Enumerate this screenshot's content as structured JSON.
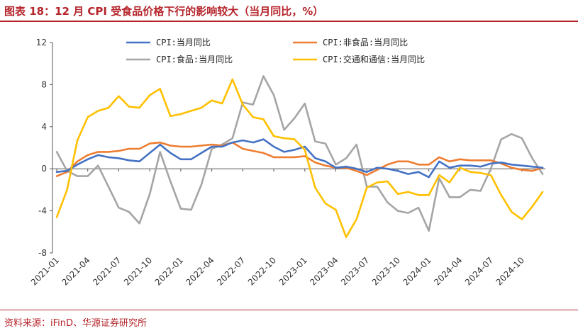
{
  "title": "图表 18：12 月 CPI 受食品价格下行的影响较大（当月同比，%）",
  "source": "资料来源：iFinD、华源证券研究所",
  "chart_data": {
    "type": "line",
    "ylim": [
      -8,
      12
    ],
    "yticks": [
      -8,
      -4,
      0,
      4,
      8,
      12
    ],
    "x_tick_labels": [
      "2021-01",
      "2021-04",
      "2021-07",
      "2021-10",
      "2022-01",
      "2022-04",
      "2022-07",
      "2022-10",
      "2023-01",
      "2023-04",
      "2023-07",
      "2023-10",
      "2024-01",
      "2024-04",
      "2024-07",
      "2024-10"
    ],
    "x": [
      "2021-01",
      "2021-02",
      "2021-03",
      "2021-04",
      "2021-05",
      "2021-06",
      "2021-07",
      "2021-08",
      "2021-09",
      "2021-10",
      "2021-11",
      "2021-12",
      "2022-01",
      "2022-02",
      "2022-03",
      "2022-04",
      "2022-05",
      "2022-06",
      "2022-07",
      "2022-08",
      "2022-09",
      "2022-10",
      "2022-11",
      "2022-12",
      "2023-01",
      "2023-02",
      "2023-03",
      "2023-04",
      "2023-05",
      "2023-06",
      "2023-07",
      "2023-08",
      "2023-09",
      "2023-10",
      "2023-11",
      "2023-12",
      "2024-01",
      "2024-02",
      "2024-03",
      "2024-04",
      "2024-05",
      "2024-06",
      "2024-07",
      "2024-08",
      "2024-09",
      "2024-10",
      "2024-11",
      "2024-12"
    ],
    "grid": false,
    "legend_position": "top",
    "series": [
      {
        "name": "CPI:当月同比",
        "color": "#4472c4",
        "values": [
          -0.3,
          -0.2,
          0.4,
          0.9,
          1.3,
          1.1,
          1.0,
          0.8,
          0.7,
          1.5,
          2.3,
          1.5,
          0.9,
          0.9,
          1.5,
          2.1,
          2.1,
          2.5,
          2.7,
          2.5,
          2.8,
          2.1,
          1.6,
          1.8,
          2.1,
          1.0,
          0.7,
          0.1,
          0.2,
          0.0,
          -0.3,
          0.1,
          0.0,
          -0.2,
          -0.5,
          -0.3,
          -0.8,
          0.7,
          0.1,
          0.3,
          0.3,
          0.2,
          0.5,
          0.6,
          0.4,
          0.3,
          0.2,
          0.1
        ]
      },
      {
        "name": "CPI:非食品:当月同比",
        "color": "#ed7d31",
        "values": [
          -0.7,
          -0.3,
          0.7,
          1.3,
          1.6,
          1.6,
          1.7,
          1.9,
          1.9,
          2.4,
          2.5,
          2.2,
          2.1,
          2.1,
          2.2,
          2.3,
          2.2,
          2.5,
          1.9,
          1.7,
          1.5,
          1.1,
          1.1,
          1.1,
          1.2,
          0.6,
          0.3,
          0.1,
          0.1,
          -0.2,
          -0.6,
          -0.1,
          0.4,
          0.7,
          0.7,
          0.4,
          0.4,
          1.1,
          0.7,
          0.9,
          0.8,
          0.8,
          0.8,
          0.5,
          0.1,
          -0.1,
          -0.2,
          0.1
        ]
      },
      {
        "name": "CPI:食品:当月同比",
        "color": "#a5a5a5",
        "values": [
          1.6,
          -0.2,
          -0.7,
          -0.7,
          0.3,
          -1.7,
          -3.7,
          -4.1,
          -5.2,
          -2.4,
          1.6,
          -1.2,
          -3.8,
          -3.9,
          -1.5,
          1.9,
          2.3,
          2.9,
          6.3,
          6.1,
          8.8,
          7.0,
          3.7,
          4.8,
          6.2,
          2.6,
          2.4,
          0.4,
          1.0,
          2.3,
          -1.7,
          -1.7,
          -3.2,
          -4.0,
          -4.2,
          -3.7,
          -5.9,
          -0.9,
          -2.7,
          -2.7,
          -2.0,
          -2.1,
          0.0,
          2.8,
          3.3,
          2.9,
          1.0,
          -0.5
        ]
      },
      {
        "name": "CPI:交通和通信:当月同比",
        "color": "#ffc000",
        "values": [
          -4.6,
          -2.0,
          2.7,
          4.9,
          5.5,
          5.8,
          6.9,
          5.9,
          5.8,
          7.0,
          7.6,
          5.0,
          5.2,
          5.5,
          5.8,
          6.5,
          6.2,
          8.5,
          6.1,
          4.9,
          4.7,
          3.1,
          2.9,
          2.8,
          1.8,
          -1.8,
          -3.3,
          -3.9,
          -6.5,
          -4.8,
          -1.8,
          -1.3,
          -1.2,
          -2.4,
          -2.2,
          -2.5,
          -2.5,
          -0.6,
          -1.3,
          0.1,
          -0.3,
          -0.4,
          -0.6,
          -2.5,
          -4.1,
          -4.8,
          -3.6,
          -2.2
        ]
      }
    ]
  }
}
